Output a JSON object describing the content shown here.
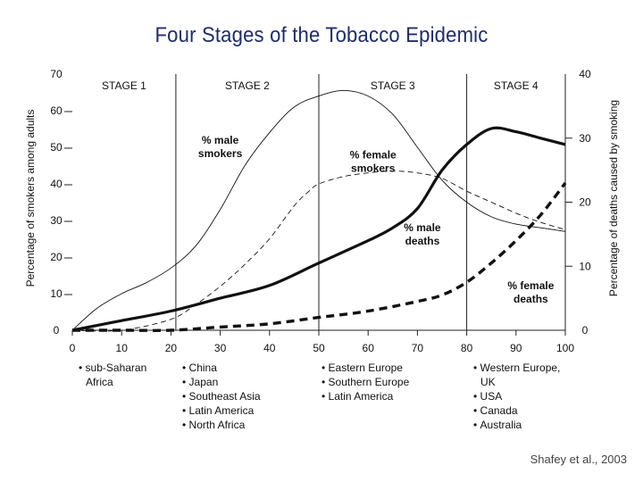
{
  "slide": {
    "title": "Four Stages of the Tobacco Epidemic",
    "citation": "Shafey et al., 2003"
  },
  "chart_data": {
    "type": "line",
    "title": "Four Stages of the Tobacco Epidemic",
    "xlabel": "",
    "ylabel": "Percentage of smokers among adults",
    "y2label": "Percentage of deaths caused by smoking",
    "xlim": [
      0,
      100
    ],
    "ylim": [
      0,
      70
    ],
    "y2lim": [
      0,
      40
    ],
    "x_ticks": [
      "0",
      "10",
      "20",
      "30",
      "40",
      "50",
      "60",
      "70",
      "80",
      "90",
      "100"
    ],
    "y_ticks": [
      "0",
      "10",
      "20",
      "30",
      "40",
      "50",
      "60",
      "70"
    ],
    "y2_ticks": [
      "0",
      "10",
      "20",
      "30",
      "40"
    ],
    "grid": false,
    "stage_dividers": [
      21,
      50,
      80
    ],
    "stages": [
      {
        "label": "STAGE 1",
        "x": 10.5
      },
      {
        "label": "STAGE 2",
        "x": 35.5
      },
      {
        "label": "STAGE 3",
        "x": 65
      },
      {
        "label": "STAGE 4",
        "x": 90
      }
    ],
    "series": [
      {
        "name": "% male smokers",
        "axis": "left",
        "style": "thin-solid",
        "x": [
          0,
          5,
          10,
          15,
          20,
          25,
          30,
          35,
          40,
          45,
          50,
          55,
          60,
          65,
          70,
          75,
          80,
          85,
          90,
          95,
          100
        ],
        "y": [
          0,
          6,
          10,
          13,
          17,
          23,
          33,
          45,
          54,
          61,
          64,
          65.5,
          64,
          59,
          50,
          41,
          35,
          31,
          29,
          28,
          27
        ]
      },
      {
        "name": "% female smokers",
        "axis": "left",
        "style": "thin-dashed",
        "x": [
          0,
          10,
          20,
          25,
          30,
          35,
          40,
          45,
          48,
          50,
          55,
          60,
          65,
          70,
          75,
          80,
          85,
          90,
          95,
          100
        ],
        "y": [
          0,
          0,
          3,
          7,
          12,
          18,
          25,
          34,
          38,
          40,
          42,
          43,
          43.5,
          43,
          41.5,
          38,
          35,
          32,
          29.5,
          27.5
        ]
      },
      {
        "name": "% male deaths",
        "axis": "right",
        "style": "thick-solid",
        "x": [
          0,
          10,
          20,
          30,
          40,
          50,
          60,
          65,
          70,
          75,
          80,
          85,
          90,
          95,
          100
        ],
        "y": [
          0,
          1.5,
          3,
          5,
          7,
          10.5,
          14,
          16,
          19,
          25,
          29,
          31.5,
          31,
          30,
          29
        ]
      },
      {
        "name": "% female deaths",
        "axis": "right",
        "style": "thick-dashed",
        "x": [
          0,
          10,
          20,
          30,
          40,
          50,
          60,
          70,
          75,
          80,
          85,
          90,
          95,
          100
        ],
        "y": [
          0,
          0,
          0,
          0.5,
          1,
          2,
          3,
          4.5,
          5.5,
          7.5,
          10.5,
          14,
          18,
          23
        ]
      }
    ],
    "annotations": [
      {
        "text": [
          "% male",
          "smokers"
        ],
        "x": 30,
        "y": 51,
        "axis": "left"
      },
      {
        "text": [
          "% female",
          "smokers"
        ],
        "x": 61,
        "y": 47,
        "axis": "left"
      },
      {
        "text": [
          "% male",
          "deaths"
        ],
        "x": 71,
        "y": 15.5,
        "axis": "right"
      },
      {
        "text": [
          "% female",
          "deaths"
        ],
        "x": 93,
        "y": 6.4,
        "axis": "right"
      }
    ]
  },
  "regions": [
    {
      "items": [
        "sub-Saharan",
        "Africa"
      ],
      "bullets": [
        true,
        false
      ]
    },
    {
      "items": [
        "China",
        "Japan",
        "Southeast Asia",
        "Latin America",
        "North Africa"
      ],
      "bullets": [
        true,
        true,
        true,
        true,
        true
      ]
    },
    {
      "items": [
        "Eastern Europe",
        "Southern Europe",
        "Latin America"
      ],
      "bullets": [
        true,
        true,
        true
      ]
    },
    {
      "items": [
        "Western Europe,",
        "UK",
        "USA",
        "Canada",
        "Australia"
      ],
      "bullets": [
        true,
        false,
        true,
        true,
        true
      ]
    }
  ]
}
